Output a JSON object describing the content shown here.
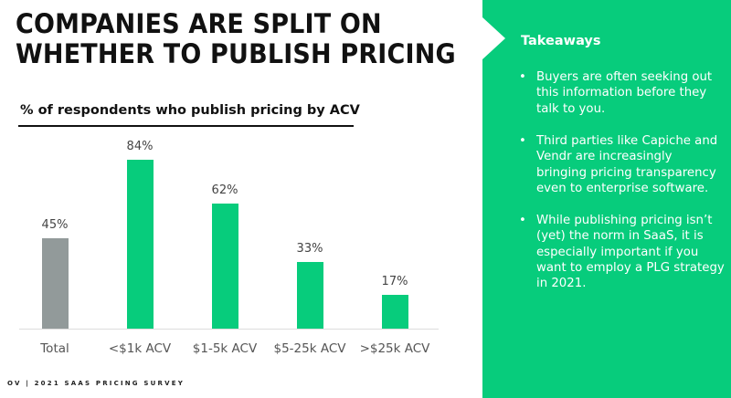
{
  "slide": {
    "title_line1": "COMPANIES ARE SPLIT ON",
    "title_line2": "WHETHER TO PUBLISH PRICING",
    "footer": "OV | 2021 SAAS PRICING SURVEY"
  },
  "chart_data": {
    "type": "bar",
    "title": "% of respondents who publish pricing by ACV",
    "xlabel": "",
    "ylabel": "",
    "categories": [
      "Total",
      "<$1k ACV",
      "$1-5k ACV",
      "$5-25k ACV",
      ">$25k ACV"
    ],
    "values": [
      45,
      84,
      62,
      33,
      17
    ],
    "value_labels": [
      "45%",
      "84%",
      "62%",
      "33%",
      "17%"
    ],
    "bar_colors": [
      "#929a9a",
      "#07cc7c",
      "#07cc7c",
      "#07cc7c",
      "#07cc7c"
    ],
    "ylim": [
      0,
      100
    ],
    "grid": false,
    "legend": "none"
  },
  "takeaways": {
    "title": "Takeaways",
    "bullet": "•",
    "items": [
      "Buyers are often seeking out this information before they talk to you.",
      "Third parties like Capiche and Vendr are increasingly bringing pricing transparency even to enterprise software.",
      "While publishing pricing isn’t (yet) the norm in SaaS, it is especially important if you want to employ a PLG strategy in 2021."
    ]
  },
  "colors": {
    "accent": "#07cc7c",
    "total_bar": "#929a9a",
    "text": "#111111"
  }
}
